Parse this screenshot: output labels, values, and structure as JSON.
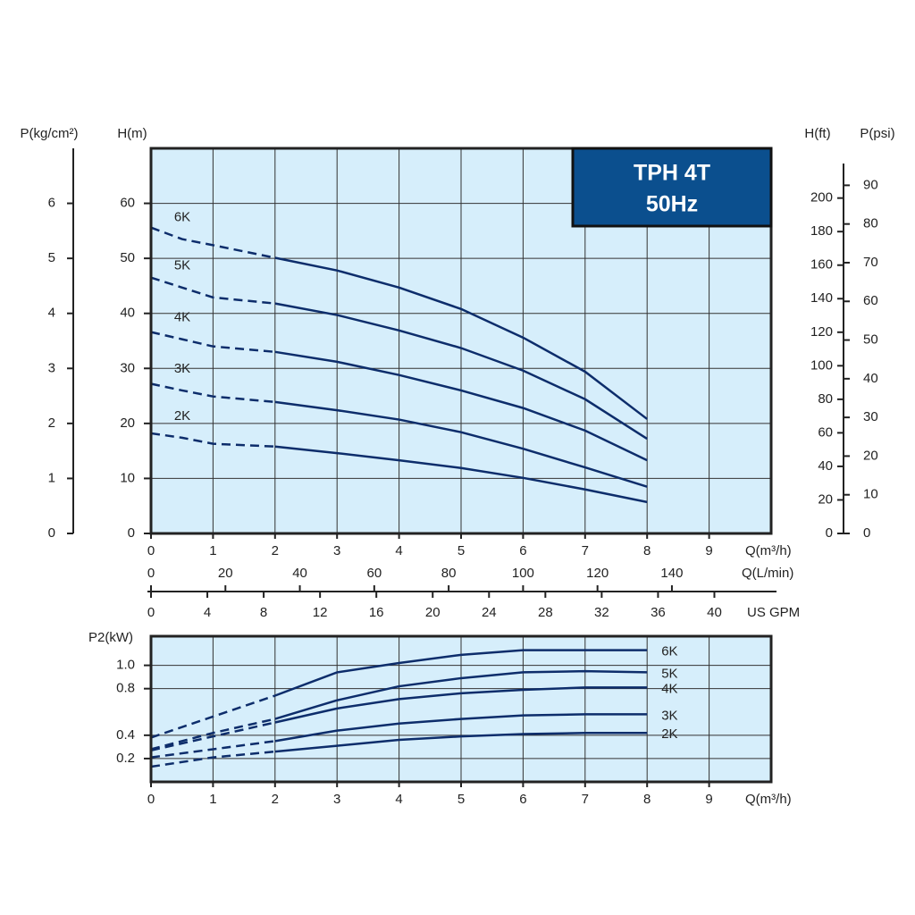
{
  "chart_data": [
    {
      "type": "line",
      "title": "TPH 4T",
      "subtitle": "50Hz",
      "x_label": "Q(m³/h)",
      "y_label": "H(m)",
      "xlim": [
        0,
        10
      ],
      "xticks": [
        0,
        1,
        2,
        3,
        4,
        5,
        6,
        7,
        8,
        9
      ],
      "ylim": [
        0,
        70
      ],
      "yticks": [
        0,
        10,
        20,
        30,
        40,
        50,
        60
      ],
      "grid": true,
      "dashed_x_max": 2,
      "x": [
        0,
        0.5,
        1,
        2,
        3,
        4,
        5,
        6,
        7,
        8
      ],
      "series": [
        {
          "name": "6K",
          "color": "#0d2d6b",
          "values": [
            55.6,
            53.5,
            52.4,
            50.1,
            47.8,
            44.7,
            40.8,
            35.6,
            29.4,
            20.8
          ]
        },
        {
          "name": "5K",
          "color": "#0d2d6b",
          "values": [
            46.5,
            44.7,
            42.9,
            41.8,
            39.7,
            36.9,
            33.7,
            29.6,
            24.4,
            17.2
          ]
        },
        {
          "name": "4K",
          "color": "#0d2d6b",
          "values": [
            36.6,
            35.3,
            34.0,
            33.0,
            31.2,
            28.8,
            26.0,
            22.8,
            18.7,
            13.3
          ]
        },
        {
          "name": "3K",
          "color": "#0d2d6b",
          "values": [
            27.2,
            26.0,
            24.9,
            23.9,
            22.4,
            20.7,
            18.4,
            15.4,
            12.0,
            8.5
          ]
        },
        {
          "name": "2K",
          "color": "#0d2d6b",
          "values": [
            18.2,
            17.4,
            16.3,
            15.8,
            14.6,
            13.3,
            11.9,
            10.1,
            8.0,
            5.7
          ]
        }
      ],
      "extra_y_axes": [
        {
          "label": "P(kg/cm²)",
          "side": "left",
          "ylim": [
            0,
            7
          ],
          "yticks": [
            0,
            1,
            2,
            3,
            4,
            5,
            6
          ]
        },
        {
          "label": "H(ft)",
          "side": "right-inner",
          "ylim": [
            0,
            229.66
          ],
          "yticks": [
            0,
            20,
            40,
            60,
            80,
            100,
            120,
            140,
            160,
            180,
            200
          ]
        },
        {
          "label": "P(psi)",
          "side": "right-outer",
          "ylim": [
            0,
            99.56
          ],
          "yticks": [
            0,
            10,
            20,
            30,
            40,
            50,
            60,
            70,
            80,
            90
          ]
        }
      ],
      "extra_x_axes": [
        {
          "label": "Q(L/min)",
          "xlim": [
            0,
            166.67
          ],
          "xticks": [
            0,
            20,
            40,
            60,
            80,
            100,
            120,
            140
          ]
        },
        {
          "label": "US GPM",
          "xlim": [
            0,
            44.03
          ],
          "xticks": [
            0,
            4,
            8,
            12,
            16,
            20,
            24,
            28,
            32,
            36,
            40
          ]
        }
      ]
    },
    {
      "type": "line",
      "x_label": "Q(m³/h)",
      "y_label": "P2(kW)",
      "xlim": [
        0,
        10
      ],
      "xticks": [
        0,
        1,
        2,
        3,
        4,
        5,
        6,
        7,
        8,
        9
      ],
      "ylim": [
        0,
        1.25
      ],
      "yticks": [
        0.2,
        0.4,
        0.8,
        {
          "value": 1,
          "label": "1.0"
        }
      ],
      "grid": true,
      "dashed_x_max": 2,
      "x": [
        0,
        1,
        2,
        3,
        4,
        5,
        6,
        7,
        8
      ],
      "series": [
        {
          "name": "6K",
          "color": "#0d2d6b",
          "values": [
            0.38,
            0.56,
            0.74,
            0.94,
            1.02,
            1.09,
            1.13,
            1.13,
            1.13
          ]
        },
        {
          "name": "5K",
          "color": "#0d2d6b",
          "values": [
            0.28,
            0.42,
            0.54,
            0.7,
            0.82,
            0.89,
            0.94,
            0.95,
            0.94
          ]
        },
        {
          "name": "4K",
          "color": "#0d2d6b",
          "values": [
            0.27,
            0.39,
            0.51,
            0.63,
            0.71,
            0.76,
            0.79,
            0.81,
            0.81
          ]
        },
        {
          "name": "3K",
          "color": "#0d2d6b",
          "values": [
            0.21,
            0.28,
            0.35,
            0.44,
            0.5,
            0.54,
            0.57,
            0.58,
            0.58
          ]
        },
        {
          "name": "2K",
          "color": "#0d2d6b",
          "values": [
            0.13,
            0.21,
            0.26,
            0.31,
            0.36,
            0.39,
            0.41,
            0.42,
            0.42
          ]
        }
      ]
    }
  ]
}
